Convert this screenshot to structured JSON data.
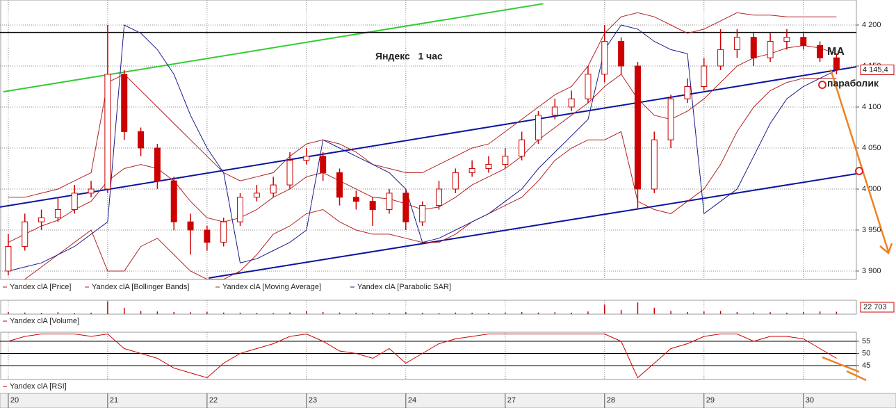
{
  "chart_data": [
    {
      "type": "candlestick",
      "annotations": [
        "Яндекс   1 час",
        "MA",
        "параболик"
      ],
      "x": [
        0,
        1,
        2,
        3,
        4,
        5,
        6,
        7,
        8,
        9,
        10,
        11,
        12,
        13,
        14,
        15,
        16,
        17,
        18,
        19,
        20,
        21,
        22,
        23,
        24,
        25,
        26,
        27,
        28,
        29,
        30,
        31,
        32,
        33,
        34,
        35,
        36,
        37,
        38,
        39,
        40,
        41,
        42,
        43,
        44,
        45,
        46,
        47,
        48,
        49,
        50
      ],
      "xlim": [
        -0.5,
        51.2
      ],
      "xticks": [
        {
          "value": 0,
          "label": "20"
        },
        {
          "value": 6,
          "label": "21"
        },
        {
          "value": 12,
          "label": "22"
        },
        {
          "value": 18,
          "label": "23"
        },
        {
          "value": 24,
          "label": "24"
        },
        {
          "value": 30,
          "label": "27"
        },
        {
          "value": 36,
          "label": "28"
        },
        {
          "value": 42,
          "label": "29"
        },
        {
          "value": 48,
          "label": "30"
        }
      ],
      "ylim": [
        3889.8,
        4230.5
      ],
      "yticks": [
        {
          "value": 3900,
          "label": "3 900"
        },
        {
          "value": 3950,
          "label": "3 950"
        },
        {
          "value": 4000,
          "label": "4 000"
        },
        {
          "value": 4050,
          "label": "4 050"
        },
        {
          "value": 4100,
          "label": "4 100"
        },
        {
          "value": 4150,
          "label": "4 150"
        },
        {
          "value": 4200,
          "label": "4 200"
        }
      ],
      "grid": true,
      "last_price": {
        "value": 4145.4,
        "label": "4 145,4"
      },
      "series": [
        {
          "name": "Yandex clA [Price]",
          "color": "#cc0000",
          "open": [
            3900,
            3930,
            3960,
            3965,
            3975,
            3995,
            4000,
            4140,
            4070,
            4050,
            4010,
            3960,
            3950,
            3935,
            3960,
            3990,
            3995,
            4005,
            4035,
            4040,
            4020,
            3990,
            3985,
            3975,
            3995,
            3960,
            3980,
            4000,
            4020,
            4025,
            4030,
            4040,
            4060,
            4090,
            4100,
            4110,
            4140,
            4180,
            4150,
            4000,
            4060,
            4110,
            4125,
            4150,
            4170,
            4185,
            4160,
            4180,
            4185,
            4175,
            4160
          ],
          "high": [
            3945,
            3970,
            3975,
            3990,
            4005,
            4010,
            4200,
            4145,
            4075,
            4055,
            4015,
            3970,
            3955,
            3965,
            3995,
            4005,
            4015,
            4045,
            4050,
            4045,
            4025,
            3998,
            3990,
            4000,
            4000,
            3985,
            4010,
            4025,
            4035,
            4040,
            4050,
            4070,
            4095,
            4110,
            4120,
            4150,
            4200,
            4185,
            4155,
            4070,
            4115,
            4135,
            4160,
            4195,
            4195,
            4190,
            4190,
            4195,
            4190,
            4180,
            4165
          ],
          "low": [
            3895,
            3925,
            3950,
            3960,
            3970,
            3990,
            3995,
            4060,
            4040,
            4000,
            3950,
            3920,
            3925,
            3930,
            3955,
            3985,
            3990,
            4000,
            4030,
            4010,
            3980,
            3975,
            3955,
            3970,
            3950,
            3955,
            3975,
            3995,
            4015,
            4020,
            4025,
            4035,
            4055,
            4085,
            4095,
            4105,
            4130,
            4140,
            3975,
            3995,
            4050,
            4105,
            4120,
            4145,
            4160,
            4150,
            4155,
            4170,
            4170,
            4155,
            4140
          ],
          "close": [
            3930,
            3960,
            3965,
            3975,
            3995,
            4000,
            4140,
            4070,
            4050,
            4010,
            3960,
            3950,
            3935,
            3960,
            3990,
            3995,
            4005,
            4035,
            4040,
            4020,
            3990,
            3985,
            3975,
            3995,
            3960,
            3980,
            4000,
            4020,
            4025,
            4030,
            4040,
            4060,
            4090,
            4100,
            4110,
            4140,
            4180,
            4150,
            4000,
            4060,
            4110,
            4125,
            4150,
            4170,
            4185,
            4160,
            4180,
            4185,
            4175,
            4160,
            4145.4
          ]
        },
        {
          "name": "Yandex clA [Bollinger Bands]",
          "color": "#b22222",
          "upper": [
            3990,
            3990,
            3995,
            4000,
            4010,
            4020,
            4130,
            4140,
            4120,
            4100,
            4080,
            4060,
            4040,
            4020,
            4010,
            4015,
            4020,
            4040,
            4055,
            4060,
            4055,
            4045,
            4030,
            4025,
            4020,
            4020,
            4030,
            4040,
            4050,
            4055,
            4070,
            4085,
            4100,
            4115,
            4125,
            4150,
            4190,
            4210,
            4215,
            4210,
            4200,
            4190,
            4195,
            4205,
            4215,
            4212,
            4212,
            4210,
            4210,
            4210,
            4210
          ],
          "lower": [
            3880,
            3890,
            3905,
            3920,
            3935,
            3950,
            3900,
            3900,
            3930,
            3940,
            3920,
            3900,
            3890,
            3890,
            3900,
            3920,
            3945,
            3955,
            3970,
            3975,
            3960,
            3950,
            3945,
            3945,
            3940,
            3935,
            3935,
            3945,
            3960,
            3970,
            3980,
            3990,
            4010,
            4035,
            4050,
            4060,
            4060,
            4070,
            3985,
            3975,
            3970,
            3985,
            4000,
            4030,
            4070,
            4100,
            4120,
            4130,
            4135,
            4135,
            4135
          ]
        },
        {
          "name": "Yandex clA [Moving Average]",
          "color": "#b22222",
          "values": [
            3935,
            3945,
            3955,
            3962,
            3975,
            3985,
            4010,
            4025,
            4030,
            4025,
            4010,
            3985,
            3965,
            3960,
            3965,
            3975,
            3990,
            4000,
            4015,
            4020,
            4010,
            4000,
            3990,
            3988,
            3982,
            3975,
            3978,
            3990,
            4005,
            4015,
            4025,
            4040,
            4060,
            4075,
            4090,
            4105,
            4125,
            4140,
            4110,
            4090,
            4085,
            4095,
            4110,
            4130,
            4150,
            4160,
            4165,
            4172,
            4175,
            4172,
            4165
          ]
        },
        {
          "name": "Yandex clA [Parabolic SAR]",
          "color": "#1a1a8c",
          "values": [
            3900,
            3905,
            3910,
            3920,
            3930,
            3945,
            3960,
            4200,
            4190,
            4170,
            4140,
            4090,
            4050,
            4020,
            3910,
            3915,
            3925,
            3935,
            3950,
            4060,
            4050,
            4040,
            4030,
            4020,
            4000,
            3935,
            3940,
            3950,
            3960,
            3970,
            3985,
            4000,
            4025,
            4045,
            4065,
            4085,
            4170,
            4200,
            4195,
            4180,
            4170,
            4165,
            3970,
            3985,
            4000,
            4040,
            4080,
            4110,
            4125,
            4135,
            4145
          ]
        }
      ],
      "lines": [
        {
          "color": "#33cc33",
          "x": [
            -0.3,
            32.3
          ],
          "y": [
            4118.6,
            4226
          ]
        },
        {
          "color": "#0a14a0",
          "x": [
            -0.5,
            51.2
          ],
          "y": [
            3978,
            4149
          ]
        },
        {
          "color": "#0a14a0",
          "x": [
            12.1,
            51.2
          ],
          "y": [
            3891.5,
            4018.6
          ]
        }
      ],
      "hlines": [
        {
          "value": 4191,
          "color": "#000000"
        }
      ]
    },
    {
      "type": "bar",
      "ylim": [
        0,
        130000
      ],
      "last_value": {
        "value": 22703,
        "label": "22 703"
      },
      "series": [
        {
          "name": "Yandex clA [Volume]",
          "color": "#cc0000",
          "values": [
            20000,
            15000,
            12000,
            18000,
            10000,
            14000,
            120000,
            60000,
            30000,
            25000,
            20000,
            18000,
            22000,
            15000,
            14000,
            12000,
            10000,
            16000,
            30000,
            20000,
            15000,
            14000,
            12000,
            10000,
            18000,
            12000,
            10000,
            15000,
            14000,
            12000,
            16000,
            20000,
            15000,
            18000,
            14000,
            25000,
            90000,
            40000,
            110000,
            60000,
            30000,
            20000,
            25000,
            30000,
            20000,
            15000,
            18000,
            14000,
            20000,
            25000,
            22703
          ]
        }
      ]
    },
    {
      "type": "line",
      "ylim": [
        39.3,
        58.7
      ],
      "yticks": [
        45,
        50,
        55
      ],
      "grid": true,
      "series": [
        {
          "name": "Yandex clA [RSI]",
          "color": "#cc0000",
          "values": [
            55,
            57,
            58,
            58,
            58,
            57,
            58,
            52,
            50,
            48,
            44,
            42,
            40,
            46,
            50,
            52,
            54,
            57,
            58,
            55,
            51,
            50,
            48,
            52,
            46,
            50,
            54,
            56,
            57,
            58,
            58,
            58,
            58,
            58,
            58,
            58,
            58,
            55,
            40,
            46,
            52,
            54,
            57,
            58,
            58,
            55,
            57,
            57,
            56,
            52,
            48
          ]
        }
      ]
    }
  ]
}
